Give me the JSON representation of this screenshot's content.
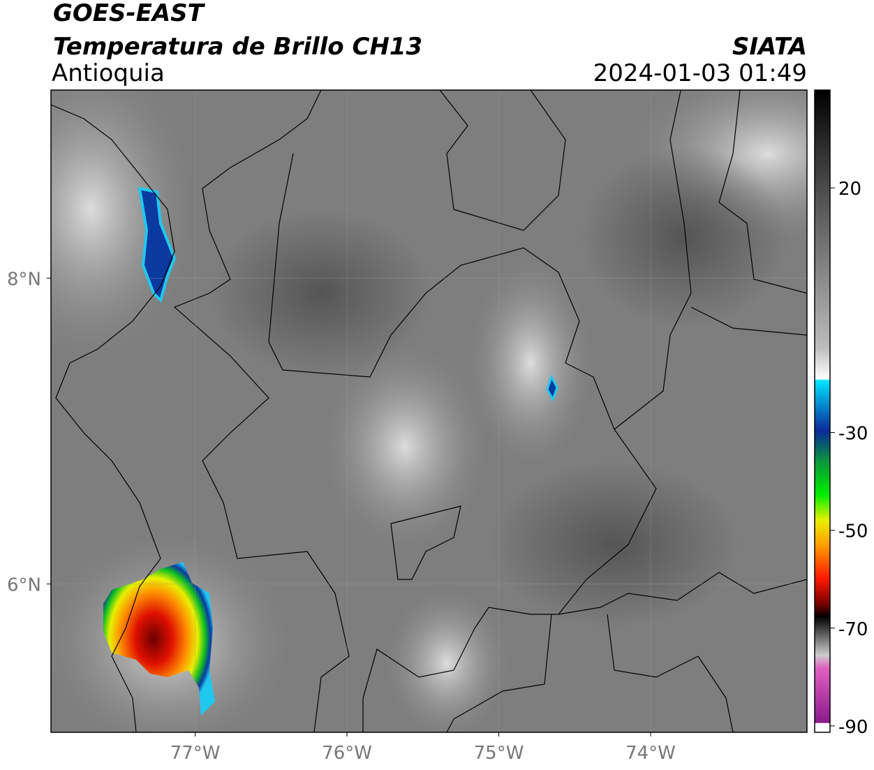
{
  "map": {
    "title": "GOES-EAST",
    "subtitle": "Temperatura de Brillo CH13",
    "region": "Antioquia",
    "source": "SIATA",
    "datetime": "2024-01-03 01:49",
    "xlim": [
      -77.95,
      -72.97
    ],
    "ylim": [
      5.03,
      9.23
    ],
    "xticks": [
      {
        "value": -77,
        "label": "77°W"
      },
      {
        "value": -76,
        "label": "76°W"
      },
      {
        "value": -75,
        "label": "75°W"
      },
      {
        "value": -74,
        "label": "74°W"
      }
    ],
    "yticks": [
      {
        "value": 8,
        "label": "8°N"
      },
      {
        "value": 6,
        "label": "6°N"
      }
    ],
    "colorbar": {
      "lim": [
        -91.3,
        40
      ],
      "ticks": [
        20,
        -30,
        -50,
        -70,
        -90
      ]
    }
  }
}
